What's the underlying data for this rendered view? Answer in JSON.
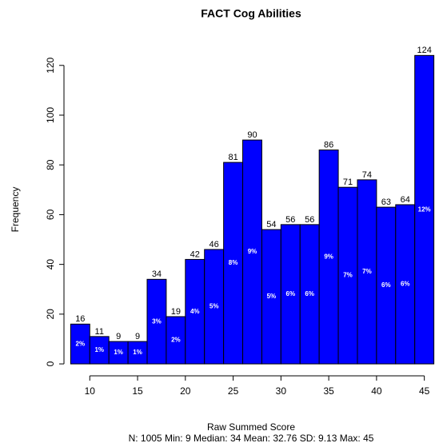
{
  "chart_data": {
    "type": "histogram",
    "title": "FACT Cog Abilities",
    "xlabel": "Raw Summed Score",
    "ylabel": "Frequency",
    "subtitle": "N: 1005 Min: 9 Median: 34 Mean: 32.76 SD: 9.13 Max: 45",
    "bins": [
      8,
      10,
      12,
      14,
      16,
      18,
      20,
      22,
      24,
      26,
      28,
      30,
      32,
      34,
      36,
      38,
      40,
      42,
      44,
      46
    ],
    "values": [
      16,
      11,
      9,
      9,
      34,
      19,
      42,
      46,
      81,
      90,
      54,
      56,
      56,
      86,
      71,
      74,
      63,
      64,
      124
    ],
    "percent_labels": [
      "2%",
      "1%",
      "1%",
      "1%",
      "3%",
      "2%",
      "4%",
      "5%",
      "8%",
      "9%",
      "5%",
      "6%",
      "6%",
      "9%",
      "7%",
      "7%",
      "6%",
      "6%",
      "12%"
    ],
    "color": "#0000ff",
    "xlim": [
      7.3,
      46.2
    ],
    "ylim": [
      -4.8,
      127
    ],
    "xticks": [
      10,
      15,
      20,
      25,
      30,
      35,
      40,
      45
    ],
    "yticks": [
      0,
      20,
      40,
      60,
      80,
      100,
      120
    ]
  }
}
